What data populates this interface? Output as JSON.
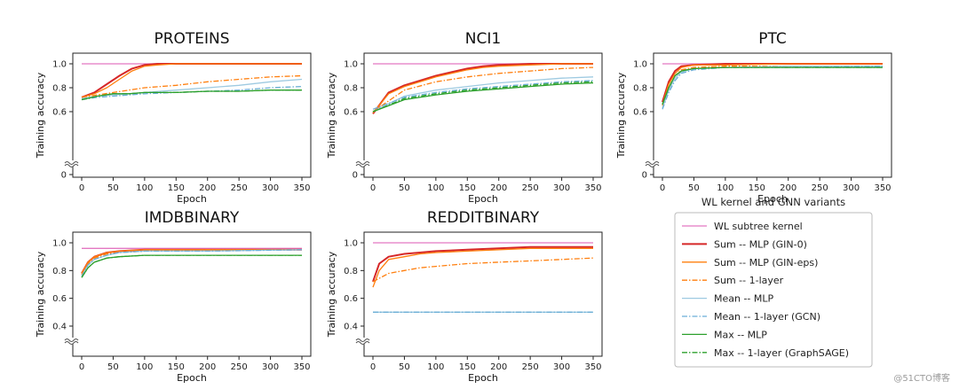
{
  "figure": {
    "watermark": "@51CTO博客"
  },
  "legend": {
    "title": "WL kernel and GNN variants",
    "placement": "lower-right",
    "items": [
      {
        "label": "WL subtree kernel",
        "color": "#e377c2",
        "dash": "solid",
        "width": 1.3
      },
      {
        "label": "Sum -- MLP (GIN-0)",
        "color": "#d62728",
        "dash": "solid",
        "width": 2.0
      },
      {
        "label": "Sum -- MLP (GIN-eps)",
        "color": "#ff7f0e",
        "dash": "solid",
        "width": 1.3
      },
      {
        "label": "Sum -- 1-layer",
        "color": "#ff7f0e",
        "dash": "dashdot",
        "width": 1.3
      },
      {
        "label": "Mean -- MLP",
        "color": "#9ecae1",
        "dash": "solid",
        "width": 1.3
      },
      {
        "label": "Mean -- 1-layer (GCN)",
        "color": "#6baed6",
        "dash": "dashdot",
        "width": 1.3
      },
      {
        "label": "Max -- MLP",
        "color": "#2ca02c",
        "dash": "solid",
        "width": 1.3
      },
      {
        "label": "Max -- 1-layer (GraphSAGE)",
        "color": "#2ca02c",
        "dash": "dashdot",
        "width": 1.3
      }
    ]
  },
  "chart_data": [
    {
      "type": "line",
      "title": "PROTEINS",
      "xlabel": "Epoch",
      "ylabel": "Training accuracy",
      "xlim": [
        0,
        350
      ],
      "ylim": [
        0,
        1.0
      ],
      "xticks": [
        "0",
        "50",
        "100",
        "150",
        "200",
        "250",
        "300",
        "350"
      ],
      "yticks": [
        "0",
        "0.6",
        "0.8",
        "1.0"
      ],
      "axis_break": true,
      "grid": false,
      "series": [
        {
          "name": "WL subtree kernel",
          "x": [
            0,
            350
          ],
          "y": [
            1.0,
            1.0
          ]
        },
        {
          "name": "Sum -- MLP (GIN-0)",
          "x": [
            0,
            20,
            40,
            60,
            80,
            100,
            120,
            150,
            200,
            250,
            300,
            350
          ],
          "y": [
            0.72,
            0.76,
            0.83,
            0.9,
            0.96,
            0.99,
            1.0,
            1.0,
            1.0,
            1.0,
            1.0,
            1.0
          ]
        },
        {
          "name": "Sum -- MLP (GIN-eps)",
          "x": [
            0,
            20,
            40,
            60,
            80,
            100,
            120,
            150,
            200,
            250,
            300,
            350
          ],
          "y": [
            0.72,
            0.75,
            0.8,
            0.87,
            0.94,
            0.98,
            0.99,
            1.0,
            1.0,
            1.0,
            1.0,
            1.0
          ]
        },
        {
          "name": "Sum -- 1-layer",
          "x": [
            0,
            25,
            50,
            75,
            100,
            150,
            200,
            250,
            300,
            350
          ],
          "y": [
            0.72,
            0.74,
            0.76,
            0.78,
            0.8,
            0.82,
            0.85,
            0.87,
            0.89,
            0.9
          ]
        },
        {
          "name": "Mean -- MLP",
          "x": [
            0,
            25,
            50,
            75,
            100,
            150,
            200,
            250,
            300,
            350
          ],
          "y": [
            0.71,
            0.73,
            0.74,
            0.75,
            0.76,
            0.78,
            0.8,
            0.82,
            0.85,
            0.87
          ]
        },
        {
          "name": "Mean -- 1-layer (GCN)",
          "x": [
            0,
            25,
            50,
            75,
            100,
            150,
            200,
            250,
            300,
            350
          ],
          "y": [
            0.7,
            0.72,
            0.73,
            0.74,
            0.75,
            0.76,
            0.77,
            0.78,
            0.8,
            0.81
          ]
        },
        {
          "name": "Max -- MLP",
          "x": [
            0,
            25,
            50,
            75,
            100,
            150,
            200,
            250,
            300,
            350
          ],
          "y": [
            0.7,
            0.73,
            0.75,
            0.75,
            0.76,
            0.76,
            0.77,
            0.77,
            0.78,
            0.78
          ]
        },
        {
          "name": "Max -- 1-layer (GraphSAGE)",
          "x": [
            0,
            25,
            50,
            75,
            100,
            150,
            200,
            250,
            300,
            350
          ],
          "y": [
            0.7,
            0.73,
            0.75,
            0.75,
            0.76,
            0.76,
            0.77,
            0.77,
            0.78,
            0.78
          ]
        }
      ]
    },
    {
      "type": "line",
      "title": "NCI1",
      "xlabel": "Epoch",
      "ylabel": "Training accuracy",
      "xlim": [
        0,
        350
      ],
      "ylim": [
        0,
        1.0
      ],
      "xticks": [
        "0",
        "50",
        "100",
        "150",
        "200",
        "250",
        "300",
        "350"
      ],
      "yticks": [
        "0",
        "0.6",
        "0.8",
        "1.0"
      ],
      "axis_break": true,
      "grid": false,
      "series": [
        {
          "name": "WL subtree kernel",
          "x": [
            0,
            350
          ],
          "y": [
            1.0,
            1.0
          ]
        },
        {
          "name": "Sum -- MLP (GIN-0)",
          "x": [
            0,
            25,
            50,
            75,
            100,
            125,
            150,
            175,
            200,
            250,
            300,
            350
          ],
          "y": [
            0.52,
            0.76,
            0.82,
            0.86,
            0.9,
            0.93,
            0.96,
            0.98,
            0.99,
            1.0,
            1.0,
            1.0
          ]
        },
        {
          "name": "Sum -- MLP (GIN-eps)",
          "x": [
            0,
            25,
            50,
            75,
            100,
            125,
            150,
            175,
            200,
            250,
            300,
            350
          ],
          "y": [
            0.55,
            0.75,
            0.81,
            0.85,
            0.89,
            0.92,
            0.95,
            0.97,
            0.98,
            0.99,
            1.0,
            1.0
          ]
        },
        {
          "name": "Sum -- 1-layer",
          "x": [
            0,
            50,
            100,
            150,
            200,
            250,
            300,
            350
          ],
          "y": [
            0.6,
            0.78,
            0.85,
            0.89,
            0.92,
            0.94,
            0.96,
            0.97
          ]
        },
        {
          "name": "Mean -- MLP",
          "x": [
            0,
            50,
            100,
            150,
            200,
            250,
            300,
            350
          ],
          "y": [
            0.6,
            0.73,
            0.78,
            0.81,
            0.84,
            0.86,
            0.88,
            0.89
          ]
        },
        {
          "name": "Mean -- 1-layer (GCN)",
          "x": [
            0,
            50,
            100,
            150,
            200,
            250,
            300,
            350
          ],
          "y": [
            0.62,
            0.72,
            0.76,
            0.79,
            0.81,
            0.83,
            0.85,
            0.86
          ]
        },
        {
          "name": "Max -- MLP",
          "x": [
            0,
            50,
            100,
            150,
            200,
            250,
            300,
            350
          ],
          "y": [
            0.6,
            0.7,
            0.74,
            0.77,
            0.79,
            0.81,
            0.83,
            0.84
          ]
        },
        {
          "name": "Max -- 1-layer (GraphSAGE)",
          "x": [
            0,
            50,
            100,
            150,
            200,
            250,
            300,
            350
          ],
          "y": [
            0.6,
            0.71,
            0.75,
            0.78,
            0.8,
            0.82,
            0.84,
            0.85
          ]
        }
      ]
    },
    {
      "type": "line",
      "title": "PTC",
      "xlabel": "Epoch",
      "ylabel": "Training accuracy",
      "xlim": [
        0,
        350
      ],
      "ylim": [
        0,
        1.0
      ],
      "xticks": [
        "0",
        "50",
        "100",
        "150",
        "200",
        "250",
        "300",
        "350"
      ],
      "yticks": [
        "0",
        "0.6",
        "0.8",
        "1.0"
      ],
      "axis_break": true,
      "grid": false,
      "series": [
        {
          "name": "WL subtree kernel",
          "x": [
            0,
            350
          ],
          "y": [
            1.0,
            1.0
          ]
        },
        {
          "name": "Sum -- MLP (GIN-0)",
          "x": [
            0,
            10,
            20,
            30,
            50,
            100,
            200,
            350
          ],
          "y": [
            0.68,
            0.85,
            0.94,
            0.98,
            0.99,
            1.0,
            1.0,
            1.0
          ]
        },
        {
          "name": "Sum -- MLP (GIN-eps)",
          "x": [
            0,
            10,
            20,
            30,
            50,
            100,
            200,
            350
          ],
          "y": [
            0.66,
            0.83,
            0.92,
            0.97,
            0.99,
            0.99,
            1.0,
            1.0
          ]
        },
        {
          "name": "Sum -- 1-layer",
          "x": [
            0,
            10,
            20,
            30,
            50,
            100,
            200,
            350
          ],
          "y": [
            0.65,
            0.8,
            0.9,
            0.95,
            0.97,
            0.98,
            0.98,
            0.98
          ]
        },
        {
          "name": "Mean -- MLP",
          "x": [
            0,
            10,
            20,
            30,
            50,
            100,
            200,
            350
          ],
          "y": [
            0.63,
            0.78,
            0.88,
            0.93,
            0.96,
            0.97,
            0.98,
            0.98
          ]
        },
        {
          "name": "Mean -- 1-layer (GCN)",
          "x": [
            0,
            10,
            20,
            30,
            50,
            100,
            200,
            350
          ],
          "y": [
            0.62,
            0.76,
            0.86,
            0.92,
            0.95,
            0.97,
            0.97,
            0.98
          ]
        },
        {
          "name": "Max -- MLP",
          "x": [
            0,
            10,
            20,
            30,
            50,
            100,
            200,
            350
          ],
          "y": [
            0.66,
            0.8,
            0.9,
            0.94,
            0.96,
            0.97,
            0.97,
            0.97
          ]
        },
        {
          "name": "Max -- 1-layer (GraphSAGE)",
          "x": [
            0,
            10,
            20,
            30,
            50,
            100,
            200,
            350
          ],
          "y": [
            0.66,
            0.8,
            0.9,
            0.94,
            0.96,
            0.97,
            0.97,
            0.97
          ]
        }
      ]
    },
    {
      "type": "line",
      "title": "IMDBBINARY",
      "xlabel": "Epoch",
      "ylabel": "Training accuracy",
      "xlim": [
        0,
        350
      ],
      "ylim": [
        0,
        1.0
      ],
      "xticks": [
        "0",
        "50",
        "100",
        "150",
        "200",
        "250",
        "300",
        "350"
      ],
      "yticks": [
        "0.4",
        "0.6",
        "0.8",
        "1.0"
      ],
      "axis_break": true,
      "grid": false,
      "series": [
        {
          "name": "WL subtree kernel",
          "x": [
            0,
            350
          ],
          "y": [
            0.96,
            0.96
          ]
        },
        {
          "name": "Sum -- MLP (GIN-0)",
          "x": [
            0,
            10,
            20,
            40,
            60,
            100,
            200,
            350
          ],
          "y": [
            0.78,
            0.86,
            0.9,
            0.93,
            0.94,
            0.95,
            0.95,
            0.95
          ]
        },
        {
          "name": "Sum -- MLP (GIN-eps)",
          "x": [
            0,
            10,
            20,
            40,
            60,
            100,
            200,
            350
          ],
          "y": [
            0.78,
            0.86,
            0.9,
            0.93,
            0.94,
            0.95,
            0.95,
            0.95
          ]
        },
        {
          "name": "Sum -- 1-layer",
          "x": [
            0,
            10,
            20,
            40,
            60,
            100,
            200,
            350
          ],
          "y": [
            0.77,
            0.85,
            0.89,
            0.92,
            0.93,
            0.94,
            0.95,
            0.95
          ]
        },
        {
          "name": "Mean -- MLP",
          "x": [
            0,
            10,
            20,
            40,
            60,
            100,
            200,
            350
          ],
          "y": [
            0.76,
            0.84,
            0.88,
            0.91,
            0.93,
            0.94,
            0.94,
            0.95
          ]
        },
        {
          "name": "Mean -- 1-layer (GCN)",
          "x": [
            0,
            10,
            20,
            40,
            60,
            100,
            200,
            350
          ],
          "y": [
            0.76,
            0.84,
            0.88,
            0.91,
            0.93,
            0.94,
            0.94,
            0.95
          ]
        },
        {
          "name": "Max -- MLP",
          "x": [
            0,
            10,
            20,
            40,
            60,
            100,
            200,
            350
          ],
          "y": [
            0.75,
            0.82,
            0.86,
            0.89,
            0.9,
            0.91,
            0.91,
            0.91
          ]
        },
        {
          "name": "Max -- 1-layer (GraphSAGE)",
          "x": [
            0,
            10,
            20,
            40,
            60,
            100,
            200,
            350
          ],
          "y": [
            0.75,
            0.82,
            0.86,
            0.89,
            0.9,
            0.91,
            0.91,
            0.91
          ]
        }
      ]
    },
    {
      "type": "line",
      "title": "REDDITBINARY",
      "xlabel": "Epoch",
      "ylabel": "Training accuracy",
      "xlim": [
        0,
        350
      ],
      "ylim": [
        0,
        1.0
      ],
      "xticks": [
        "0",
        "50",
        "100",
        "150",
        "200",
        "250",
        "300",
        "350"
      ],
      "yticks": [
        "0.4",
        "0.6",
        "0.8",
        "1.0"
      ],
      "axis_break": true,
      "grid": false,
      "series": [
        {
          "name": "WL subtree kernel",
          "x": [
            0,
            350
          ],
          "y": [
            1.0,
            1.0
          ]
        },
        {
          "name": "Sum -- MLP (GIN-0)",
          "x": [
            0,
            10,
            25,
            50,
            75,
            100,
            150,
            200,
            250,
            300,
            350
          ],
          "y": [
            0.72,
            0.85,
            0.9,
            0.92,
            0.93,
            0.94,
            0.95,
            0.96,
            0.97,
            0.97,
            0.97
          ]
        },
        {
          "name": "Sum -- MLP (GIN-eps)",
          "x": [
            0,
            10,
            25,
            50,
            75,
            100,
            150,
            200,
            250,
            300,
            350
          ],
          "y": [
            0.68,
            0.8,
            0.88,
            0.9,
            0.92,
            0.93,
            0.94,
            0.95,
            0.96,
            0.96,
            0.96
          ]
        },
        {
          "name": "Sum -- 1-layer",
          "x": [
            0,
            25,
            50,
            75,
            100,
            150,
            200,
            250,
            300,
            350
          ],
          "y": [
            0.72,
            0.78,
            0.8,
            0.82,
            0.83,
            0.85,
            0.86,
            0.87,
            0.88,
            0.89
          ]
        },
        {
          "name": "Mean -- MLP",
          "x": [
            0,
            350
          ],
          "y": [
            0.5,
            0.5
          ]
        },
        {
          "name": "Mean -- 1-layer (GCN)",
          "x": [
            0,
            350
          ],
          "y": [
            0.5,
            0.5
          ]
        }
      ]
    }
  ]
}
